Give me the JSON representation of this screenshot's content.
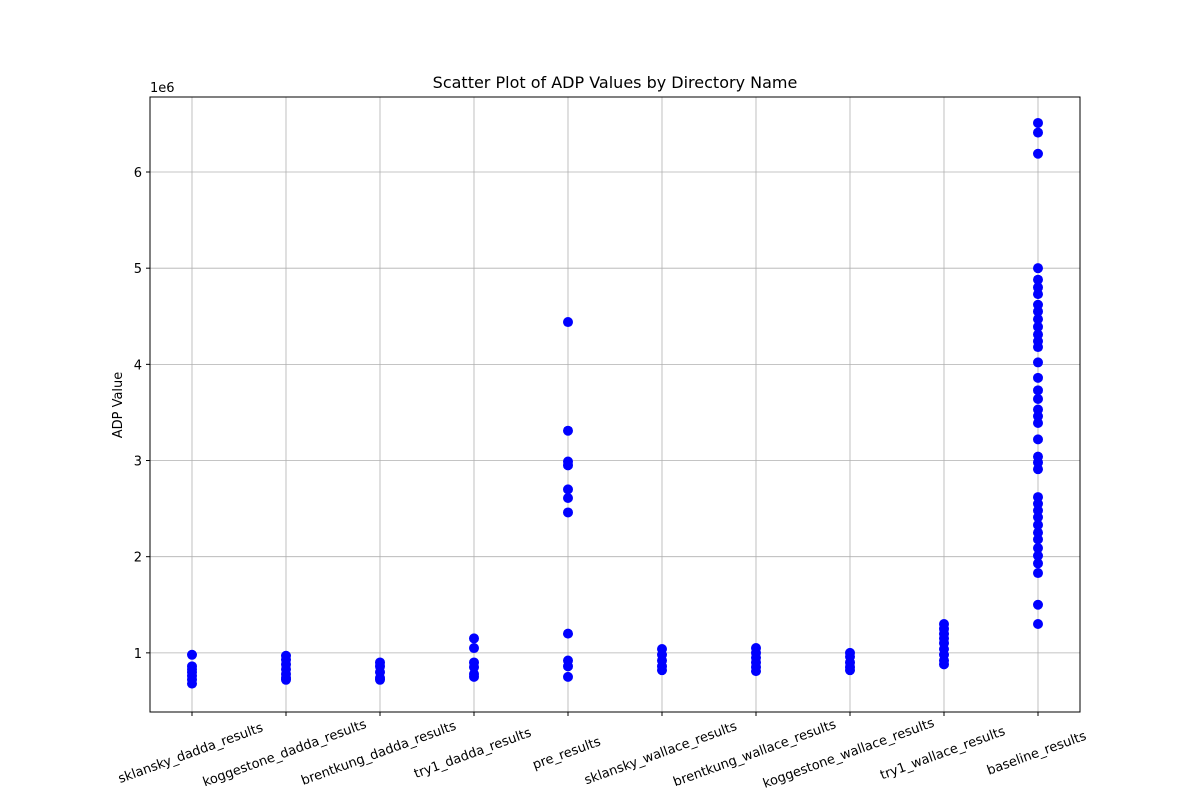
{
  "chart_data": {
    "type": "scatter",
    "title": "Scatter Plot of ADP Values by Directory Name",
    "y_label": "ADP Value",
    "y_offset_label": "1e6",
    "color": "#0000ff",
    "grid": true,
    "categories": [
      "sklansky_dadda_results",
      "koggestone_dadda_results",
      "brentkung_dadda_results",
      "try1_dadda_results",
      "pre_results",
      "sklansky_wallace_results",
      "brentkung_wallace_results",
      "koggestone_wallace_results",
      "try1_wallace_results",
      "baseline_results"
    ],
    "values": [
      [
        0.98,
        0.86,
        0.83,
        0.8,
        0.76,
        0.72,
        0.68
      ],
      [
        0.97,
        0.93,
        0.88,
        0.83,
        0.78,
        0.74,
        0.72
      ],
      [
        0.9,
        0.86,
        0.8,
        0.74,
        0.72
      ],
      [
        1.15,
        1.05,
        0.9,
        0.85,
        0.78,
        0.75
      ],
      [
        4.44,
        3.31,
        2.99,
        2.95,
        2.7,
        2.61,
        2.46,
        1.2,
        0.92,
        0.86,
        0.75
      ],
      [
        1.04,
        0.98,
        0.92,
        0.86,
        0.82
      ],
      [
        1.05,
        1.0,
        0.95,
        0.9,
        0.85,
        0.81
      ],
      [
        1.0,
        0.96,
        0.9,
        0.85,
        0.82
      ],
      [
        1.3,
        1.25,
        1.2,
        1.15,
        1.1,
        1.04,
        0.98,
        0.92,
        0.88
      ],
      [
        6.51,
        6.41,
        6.19,
        5.0,
        4.88,
        4.8,
        4.73,
        4.62,
        4.55,
        4.47,
        4.39,
        4.31,
        4.24,
        4.18,
        4.02,
        3.86,
        3.73,
        3.64,
        3.53,
        3.46,
        3.39,
        3.22,
        3.04,
        2.98,
        2.91,
        2.62,
        2.55,
        2.48,
        2.41,
        2.33,
        2.25,
        2.18,
        2.09,
        2.01,
        1.93,
        1.83,
        1.5,
        1.3
      ]
    ],
    "ylim": [
      0.385,
      6.78
    ],
    "yticks": [
      1,
      2,
      3,
      4,
      5,
      6
    ]
  }
}
